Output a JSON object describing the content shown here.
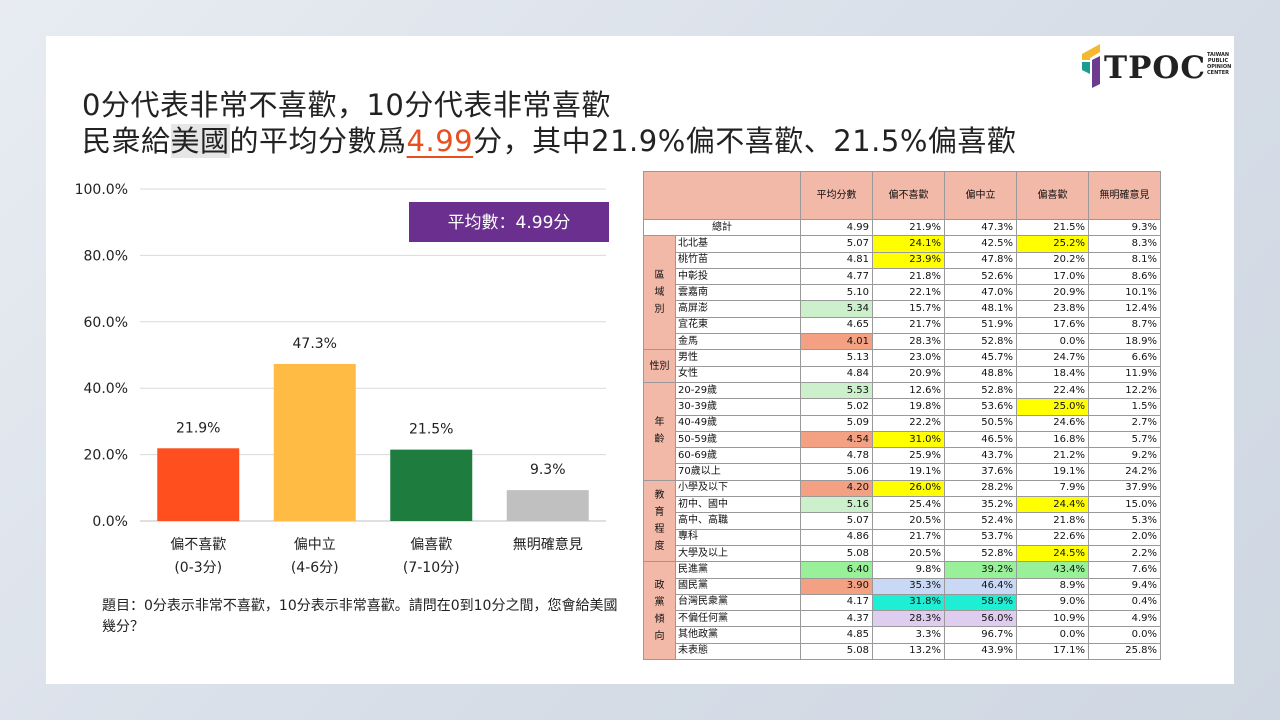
{
  "title": {
    "line1": "0分代表非常不喜歡，10分代表非常喜歡",
    "line2_a": "民衆給",
    "line2_b": "美國",
    "line2_c": "的平均分數爲",
    "line2_d": "4.99",
    "line2_e": "分，其中21.9%偏不喜歡、21.5%偏喜歡"
  },
  "logo": {
    "text": "TPOC",
    "small": "TAIWAN PUBLIC OPINION CENTER",
    "colors": [
      "#f5b82e",
      "#1e9b8f",
      "#6c3a8e"
    ]
  },
  "chart_data": {
    "type": "bar",
    "categories": [
      "偏不喜歡\n(0-3分)",
      "偏中立\n(4-6分)",
      "偏喜歡\n(7-10分)",
      "無明確意見"
    ],
    "values": [
      21.9,
      47.3,
      21.5,
      9.3
    ],
    "value_labels": [
      "21.9%",
      "47.3%",
      "21.5%",
      "9.3%"
    ],
    "colors": [
      "#ff4f1f",
      "#ffbb44",
      "#1e7d3e",
      "#c0c0c0"
    ],
    "yticks": [
      "100.0%",
      "80.0%",
      "60.0%",
      "40.0%",
      "20.0%",
      "0.0%"
    ],
    "ylim": [
      0,
      100
    ],
    "grid": true,
    "annotation": "平均數：4.99分",
    "annotation_color": "#6b2f8f"
  },
  "note": "題目：0分表示非常不喜歡，10分表示非常喜歡。請問在0到10分之間，您會給美國幾分？",
  "table": {
    "headers": [
      "平均分數",
      "偏不喜歡",
      "偏中立",
      "偏喜歡",
      "無明確意見"
    ],
    "total": {
      "label": "總計",
      "cells": [
        "4.99",
        "21.9%",
        "47.3%",
        "21.5%",
        "9.3%"
      ]
    },
    "groups": {
      "region": "區\n域\n別",
      "gender": "性別",
      "age": "年\n齡",
      "edu": "教\n育\n程\n度",
      "party": "政\n黨\n傾\n向"
    },
    "rows": [
      {
        "label": "北北基",
        "cells": [
          "5.07",
          "24.1%",
          "42.5%",
          "25.2%",
          "8.3%"
        ],
        "hl": [
          "",
          "y",
          "",
          "y",
          ""
        ]
      },
      {
        "label": "桃竹苗",
        "cells": [
          "4.81",
          "23.9%",
          "47.8%",
          "20.2%",
          "8.1%"
        ],
        "hl": [
          "",
          "y",
          "",
          "",
          ""
        ]
      },
      {
        "label": "中彰投",
        "cells": [
          "4.77",
          "21.8%",
          "52.6%",
          "17.0%",
          "8.6%"
        ],
        "hl": [
          "",
          "",
          "",
          "",
          ""
        ]
      },
      {
        "label": "雲嘉南",
        "cells": [
          "5.10",
          "22.1%",
          "47.0%",
          "20.9%",
          "10.1%"
        ],
        "hl": [
          "",
          "",
          "",
          "",
          ""
        ]
      },
      {
        "label": "高屏澎",
        "cells": [
          "5.34",
          "15.7%",
          "48.1%",
          "23.8%",
          "12.4%"
        ],
        "hl": [
          "g",
          "",
          "",
          "",
          ""
        ]
      },
      {
        "label": "宜花東",
        "cells": [
          "4.65",
          "21.7%",
          "51.9%",
          "17.6%",
          "8.7%"
        ],
        "hl": [
          "",
          "",
          "",
          "",
          ""
        ]
      },
      {
        "label": "金馬",
        "cells": [
          "4.01",
          "28.3%",
          "52.8%",
          "0.0%",
          "18.9%"
        ],
        "hl": [
          "r",
          "",
          "",
          "",
          ""
        ]
      },
      {
        "label": "男性",
        "cells": [
          "5.13",
          "23.0%",
          "45.7%",
          "24.7%",
          "6.6%"
        ],
        "hl": [
          "",
          "",
          "",
          "",
          ""
        ]
      },
      {
        "label": "女性",
        "cells": [
          "4.84",
          "20.9%",
          "48.8%",
          "18.4%",
          "11.9%"
        ],
        "hl": [
          "",
          "",
          "",
          "",
          ""
        ]
      },
      {
        "label": "20-29歲",
        "cells": [
          "5.53",
          "12.6%",
          "52.8%",
          "22.4%",
          "12.2%"
        ],
        "hl": [
          "g",
          "",
          "",
          "",
          ""
        ]
      },
      {
        "label": "30-39歲",
        "cells": [
          "5.02",
          "19.8%",
          "53.6%",
          "25.0%",
          "1.5%"
        ],
        "hl": [
          "",
          "",
          "",
          "y",
          ""
        ]
      },
      {
        "label": "40-49歲",
        "cells": [
          "5.09",
          "22.2%",
          "50.5%",
          "24.6%",
          "2.7%"
        ],
        "hl": [
          "",
          "",
          "",
          "",
          ""
        ]
      },
      {
        "label": "50-59歲",
        "cells": [
          "4.54",
          "31.0%",
          "46.5%",
          "16.8%",
          "5.7%"
        ],
        "hl": [
          "r",
          "y",
          "",
          "",
          ""
        ]
      },
      {
        "label": "60-69歲",
        "cells": [
          "4.78",
          "25.9%",
          "43.7%",
          "21.2%",
          "9.2%"
        ],
        "hl": [
          "",
          "",
          "",
          "",
          ""
        ]
      },
      {
        "label": "70歲以上",
        "cells": [
          "5.06",
          "19.1%",
          "37.6%",
          "19.1%",
          "24.2%"
        ],
        "hl": [
          "",
          "",
          "",
          "",
          ""
        ]
      },
      {
        "label": "小學及以下",
        "cells": [
          "4.20",
          "26.0%",
          "28.2%",
          "7.9%",
          "37.9%"
        ],
        "hl": [
          "r",
          "y",
          "",
          "",
          ""
        ]
      },
      {
        "label": "初中、國中",
        "cells": [
          "5.16",
          "25.4%",
          "35.2%",
          "24.4%",
          "15.0%"
        ],
        "hl": [
          "g",
          "",
          "",
          "y",
          ""
        ]
      },
      {
        "label": "高中、高職",
        "cells": [
          "5.07",
          "20.5%",
          "52.4%",
          "21.8%",
          "5.3%"
        ],
        "hl": [
          "",
          "",
          "",
          "",
          ""
        ]
      },
      {
        "label": "專科",
        "cells": [
          "4.86",
          "21.7%",
          "53.7%",
          "22.6%",
          "2.0%"
        ],
        "hl": [
          "",
          "",
          "",
          "",
          ""
        ]
      },
      {
        "label": "大學及以上",
        "cells": [
          "5.08",
          "20.5%",
          "52.8%",
          "24.5%",
          "2.2%"
        ],
        "hl": [
          "",
          "",
          "",
          "y",
          ""
        ]
      },
      {
        "label": "民進黨",
        "cells": [
          "6.40",
          "9.8%",
          "39.2%",
          "43.4%",
          "7.6%"
        ],
        "hl": [
          "lg",
          "",
          "lg",
          "lg",
          ""
        ]
      },
      {
        "label": "國民黨",
        "cells": [
          "3.90",
          "35.3%",
          "46.4%",
          "8.9%",
          "9.4%"
        ],
        "hl": [
          "r",
          "b",
          "b",
          "",
          ""
        ]
      },
      {
        "label": "台灣民衆黨",
        "cells": [
          "4.17",
          "31.8%",
          "58.9%",
          "9.0%",
          "0.4%"
        ],
        "hl": [
          "",
          "t",
          "t",
          "",
          ""
        ]
      },
      {
        "label": "不偏任何黨",
        "cells": [
          "4.37",
          "28.3%",
          "56.0%",
          "10.9%",
          "4.9%"
        ],
        "hl": [
          "",
          "p",
          "p",
          "",
          ""
        ]
      },
      {
        "label": "其他政黨",
        "cells": [
          "4.85",
          "3.3%",
          "96.7%",
          "0.0%",
          "0.0%"
        ],
        "hl": [
          "",
          "",
          "",
          "",
          ""
        ]
      },
      {
        "label": "未表態",
        "cells": [
          "5.08",
          "13.2%",
          "43.9%",
          "17.1%",
          "25.8%"
        ],
        "hl": [
          "",
          "",
          "",
          "",
          ""
        ]
      }
    ]
  }
}
